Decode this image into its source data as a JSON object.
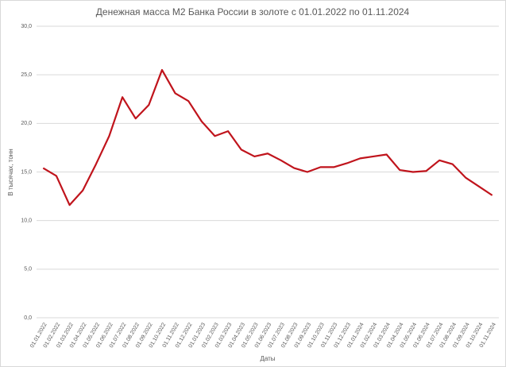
{
  "chart_data": {
    "type": "line",
    "title": "Денежная масса М2 Банка России в золоте с 01.01.2022 по 01.11.2024",
    "x_label": "Даты",
    "y_label": "В тысячах, тонн",
    "categories": [
      "01.01.2022",
      "01.02.2022",
      "01.03.2022",
      "01.04.2022",
      "01.05.2022",
      "01.06.2022",
      "01.07.2022",
      "01.08.2022",
      "01.09.2022",
      "01.10.2022",
      "01.11.2022",
      "01.12.2022",
      "01.01.2023",
      "01.02.2023",
      "01.03.2023",
      "01.04.2023",
      "01.05.2023",
      "01.06.2023",
      "01.07.2023",
      "01.08.2023",
      "01.09.2023",
      "01.10.2023",
      "01.11.2023",
      "01.12.2023",
      "01.01.2024",
      "01.02.2024",
      "01.03.2024",
      "01.04.2024",
      "01.05.2024",
      "01.06.2024",
      "01.07.2024",
      "01.08.2024",
      "01.09.2024",
      "01.10.2024",
      "01.11.2024"
    ],
    "series": [
      {
        "name": "M2",
        "color": "#c0141c",
        "values": [
          15.4,
          14.6,
          11.6,
          13.1,
          15.8,
          18.7,
          22.7,
          20.5,
          21.9,
          25.5,
          23.1,
          22.3,
          20.2,
          18.7,
          19.2,
          17.3,
          16.6,
          16.9,
          16.2,
          15.4,
          15.0,
          15.5,
          15.5,
          15.9,
          16.4,
          16.6,
          16.8,
          15.2,
          15.0,
          15.1,
          16.2,
          15.8,
          14.4,
          13.5,
          12.6
        ]
      }
    ],
    "ylim": [
      0,
      30
    ],
    "yticks": [
      {
        "value": 0,
        "label": "0,0"
      },
      {
        "value": 5,
        "label": "5,0"
      },
      {
        "value": 10,
        "label": "10,0"
      },
      {
        "value": 15,
        "label": "15,0"
      },
      {
        "value": 20,
        "label": "20,0"
      },
      {
        "value": 25,
        "label": "25,0"
      },
      {
        "value": 30,
        "label": "30,0"
      }
    ],
    "grid": true
  }
}
